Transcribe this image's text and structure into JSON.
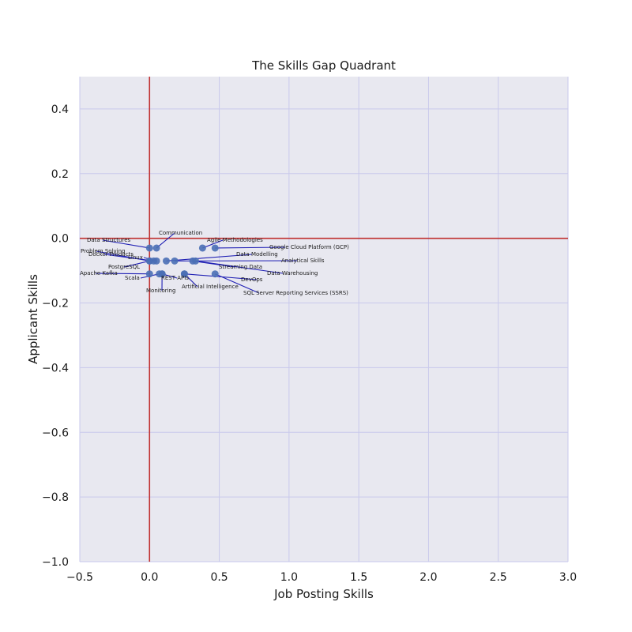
{
  "chart_data": {
    "type": "scatter",
    "title": "The Skills Gap Quadrant",
    "xlabel": "Job Posting Skills",
    "ylabel": "Applicant Skills",
    "xlim": [
      -0.5,
      3.0
    ],
    "ylim": [
      -1.0,
      0.5
    ],
    "xticks": [
      -0.5,
      0.0,
      0.5,
      1.0,
      1.5,
      2.0,
      2.5,
      3.0
    ],
    "xtick_labels": [
      "−0.5",
      "0.0",
      "0.5",
      "1.0",
      "1.5",
      "2.0",
      "2.5",
      "3.0"
    ],
    "yticks": [
      -1.0,
      -0.8,
      -0.6,
      -0.4,
      -0.2,
      0.0,
      0.2,
      0.4
    ],
    "ytick_labels": [
      "−1.0",
      "−0.8",
      "−0.6",
      "−0.4",
      "−0.2",
      "0.0",
      "0.2",
      "0.4"
    ],
    "grid": true,
    "reference_lines": {
      "x": 0.0,
      "y": 0.0,
      "color": "#c03030"
    },
    "colors": {
      "background": "#e8e8f0",
      "grid": "#c9c9ec",
      "point": "#4a6fb5",
      "connector": "#1f1fb4"
    },
    "points": [
      {
        "label": "Data Structures",
        "x": 0.0,
        "y": -0.03
      },
      {
        "label": "Communication",
        "x": 0.05,
        "y": -0.03
      },
      {
        "label": "Agile Methodologies",
        "x": 0.38,
        "y": -0.03
      },
      {
        "label": "Google Cloud Platform (GCP)",
        "x": 0.47,
        "y": -0.03
      },
      {
        "label": "Problem Solving",
        "x": 0.0,
        "y": -0.07
      },
      {
        "label": "Docker Products",
        "x": 0.03,
        "y": -0.07
      },
      {
        "label": "Linux",
        "x": 0.05,
        "y": -0.07
      },
      {
        "label": "Data Modelling",
        "x": 0.12,
        "y": -0.07
      },
      {
        "label": "Analytical Skills",
        "x": 0.18,
        "y": -0.07
      },
      {
        "label": "PostgreSQL",
        "x": 0.0,
        "y": -0.07
      },
      {
        "label": "Streaming Data",
        "x": 0.31,
        "y": -0.07
      },
      {
        "label": "Data Warehousing",
        "x": 0.33,
        "y": -0.07
      },
      {
        "label": "Apache Kafka",
        "x": 0.0,
        "y": -0.11
      },
      {
        "label": "Scala",
        "x": 0.07,
        "y": -0.11
      },
      {
        "label": "REST APIs",
        "x": 0.09,
        "y": -0.11
      },
      {
        "label": "Monitoring",
        "x": 0.09,
        "y": -0.11
      },
      {
        "label": "Artificial Intelligence",
        "x": 0.25,
        "y": -0.11
      },
      {
        "label": "DevOps",
        "x": 0.25,
        "y": -0.11
      },
      {
        "label": "SQL Server Reporting Services (SSRS)",
        "x": 0.47,
        "y": -0.11
      }
    ]
  }
}
